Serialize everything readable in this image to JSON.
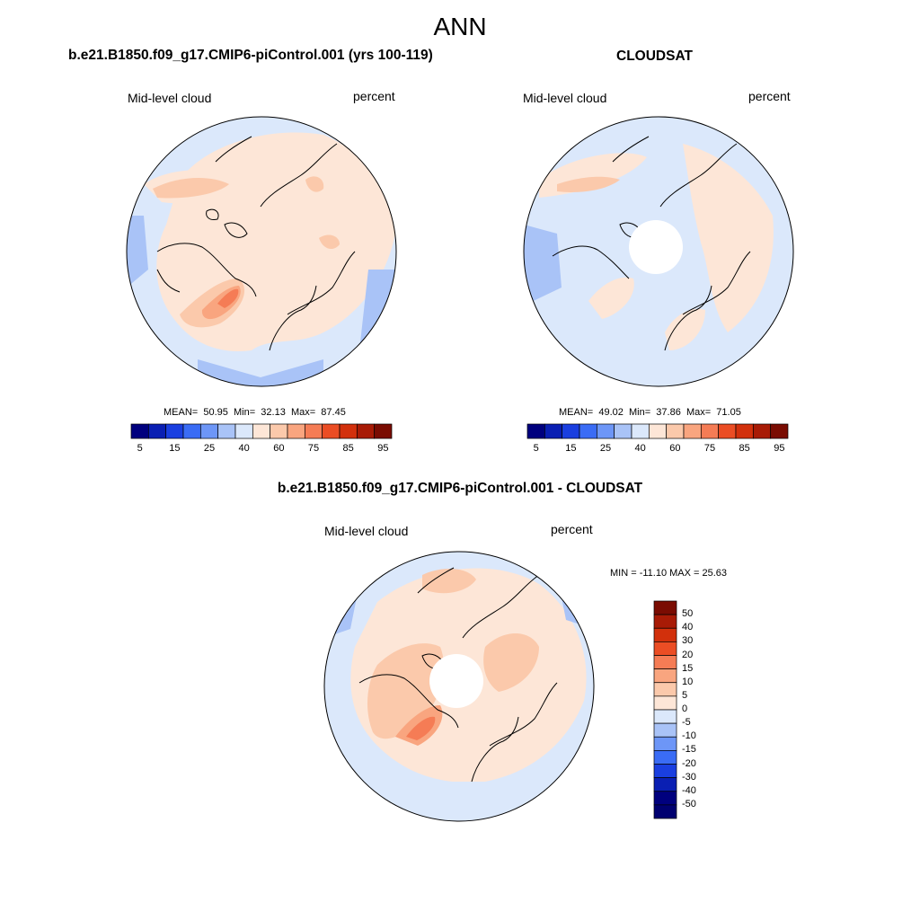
{
  "title": "ANN",
  "model_panel": {
    "title": "b.e21.B1850.f09_g17.CMIP6-piControl.001 (yrs 100-119)",
    "variable": "Mid-level cloud",
    "units": "percent",
    "mean_label": "MEAN=",
    "mean": "50.95",
    "min_label": "Min=",
    "min": "32.13",
    "max_label": "Max=",
    "max": "87.45"
  },
  "obs_panel": {
    "title": "CLOUDSAT",
    "variable": "Mid-level cloud",
    "units": "percent",
    "mean_label": "MEAN=",
    "mean": "49.02",
    "min_label": "Min=",
    "min": "37.86",
    "max_label": "Max=",
    "max": "71.05"
  },
  "diff_panel": {
    "title": "b.e21.B1850.f09_g17.CMIP6-piControl.001 - CLOUDSAT",
    "variable": "Mid-level cloud",
    "units": "percent",
    "minmax_text": "MIN = -11.10 MAX =  25.63"
  },
  "colorbar_horizontal": {
    "colors": [
      "#00007e",
      "#0a1fb3",
      "#1a3fe0",
      "#3a6cf5",
      "#6d96f7",
      "#a9c3f7",
      "#dbe8fb",
      "#fde6d7",
      "#fbc9ab",
      "#f9a57f",
      "#f57c55",
      "#eb4d24",
      "#d2300c",
      "#a81b06",
      "#7a0c02"
    ],
    "tick_labels": [
      "5",
      "15",
      "25",
      "40",
      "60",
      "75",
      "85",
      "95"
    ],
    "tick_positions": [
      1,
      3,
      5,
      7,
      9,
      11,
      13,
      15
    ]
  },
  "colorbar_vertical": {
    "colors": [
      "#7a0c02",
      "#a81b06",
      "#d2300c",
      "#eb4d24",
      "#f57c55",
      "#f9a57f",
      "#fbc9ab",
      "#fde6d7",
      "#dbe8fb",
      "#a9c3f7",
      "#6d96f7",
      "#3a6cf5",
      "#1a3fe0",
      "#0a1fb3",
      "#00007e",
      "#000070"
    ],
    "tick_labels": [
      "50",
      "40",
      "30",
      "20",
      "15",
      "10",
      "5",
      "0",
      "-5",
      "-10",
      "-15",
      "-20",
      "-30",
      "-40",
      "-50"
    ]
  },
  "map_colors": {
    "ocean_base": "#dbe8fb",
    "light_red": "#fde6d7",
    "mid_red": "#fbc9ab",
    "orange": "#f57c55",
    "red": "#eb4d24",
    "light_blue": "#a9c3f7",
    "blue": "#6d96f7",
    "coast": "#000000",
    "missing": "#ffffff"
  }
}
